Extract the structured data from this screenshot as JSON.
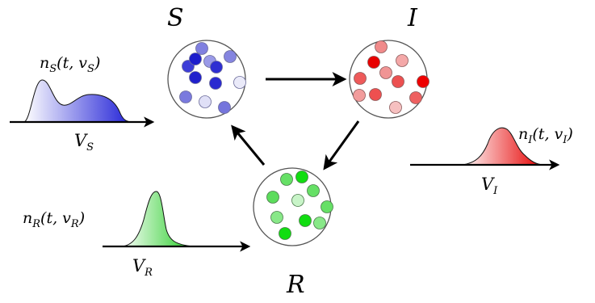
{
  "compartments": {
    "S": {
      "label": "S"
    },
    "I": {
      "label": "I"
    },
    "R": {
      "label": "R"
    }
  },
  "distributions": {
    "S": {
      "density_label": "n",
      "density_sub": "S",
      "density_args": "(t, v",
      "arg_sub": "S",
      "close": ")",
      "space_label": "V",
      "space_sub": "S"
    },
    "I": {
      "density_label": "n",
      "density_sub": "I",
      "density_args": "(t, v",
      "arg_sub": "I",
      "close": ")",
      "space_label": "V",
      "space_sub": "I"
    },
    "R": {
      "density_label": "n",
      "density_sub": "R",
      "density_args": "(t, v",
      "arg_sub": "R",
      "close": ")",
      "space_label": "V",
      "space_sub": "R"
    }
  },
  "colors": {
    "susceptible": "#2020e0",
    "infected": "#ee0000",
    "recovered": "#11dd11",
    "arrow": "#000000"
  },
  "flows": [
    "S-to-I",
    "I-to-R",
    "R-to-S"
  ]
}
